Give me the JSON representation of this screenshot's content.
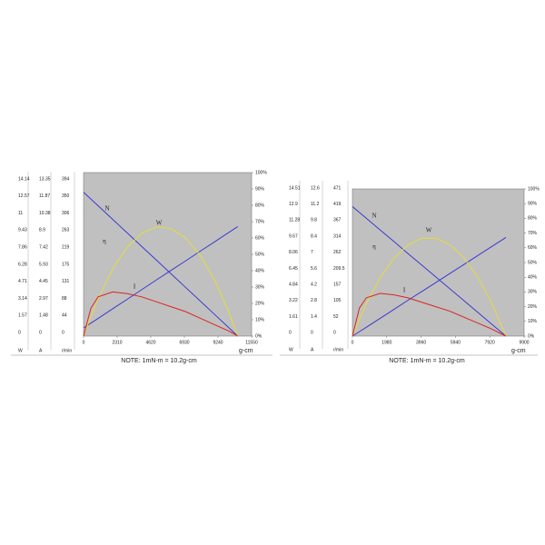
{
  "chart_data": [
    {
      "type": "line",
      "x_label": "g-cm",
      "note": "NOTE: 1mN-m = 10.2g-cm",
      "table": {
        "header": [
          "W",
          "A",
          "r/min"
        ],
        "rows": [
          [
            14.14,
            13.35,
            394
          ],
          [
            12.57,
            11.87,
            350
          ],
          [
            11.0,
            10.38,
            306
          ],
          [
            9.43,
            8.9,
            263
          ],
          [
            7.86,
            7.42,
            219
          ],
          [
            6.28,
            5.93,
            175
          ],
          [
            4.71,
            4.45,
            131
          ],
          [
            3.14,
            2.97,
            88
          ],
          [
            1.57,
            1.48,
            44
          ],
          [
            0,
            0,
            0
          ]
        ]
      },
      "x": [
        0,
        500,
        1000,
        2000,
        3000,
        4000,
        5000,
        6000,
        7000,
        8000,
        9000,
        10000,
        10600
      ],
      "xlim": [
        0,
        11550
      ],
      "xticks": [
        0,
        2310,
        4620,
        6930,
        9240,
        11550
      ],
      "y2lim": [
        0,
        100
      ],
      "y2ticks": [
        {
          "value": 0,
          "label": "0%"
        },
        {
          "value": 10,
          "label": "10%"
        },
        {
          "value": 20,
          "label": "20%"
        },
        {
          "value": 30,
          "label": "30%"
        },
        {
          "value": 40,
          "label": "40%"
        },
        {
          "value": 50,
          "label": "50%"
        },
        {
          "value": 60,
          "label": "60%"
        },
        {
          "value": 70,
          "label": "70%"
        },
        {
          "value": 80,
          "label": "80%"
        },
        {
          "value": 90,
          "label": "90%"
        },
        {
          "value": 100,
          "label": "100%"
        }
      ],
      "series": [
        {
          "name": "N",
          "color": "#3a3ad0",
          "axis": "y2",
          "values": [
            88,
            83.8,
            79.7,
            71.4,
            63.1,
            54.8,
            46.5,
            38.2,
            29.9,
            21.6,
            13.3,
            5.0,
            0
          ]
        },
        {
          "name": "I",
          "color": "#3a3ad0",
          "axis": "y2",
          "values": [
            5,
            7.9,
            10.8,
            16.7,
            22.5,
            28.4,
            34.3,
            40.1,
            45.9,
            51.8,
            57.6,
            63.5,
            67
          ]
        },
        {
          "name": "W",
          "color": "#e6dc3a",
          "axis": "y2",
          "values": [
            0,
            12.0,
            22.8,
            41.1,
            54.4,
            62.9,
            66.8,
            65.8,
            60.1,
            49.6,
            34.4,
            14.4,
            0
          ]
        },
        {
          "name": "η",
          "color": "#dd2222",
          "axis": "y2",
          "values": [
            0,
            17,
            24,
            27,
            26,
            24,
            21,
            18,
            15,
            11,
            7,
            3,
            0
          ]
        }
      ]
    },
    {
      "type": "line",
      "x_label": "g-cm",
      "note": "NOTE: 1mN-m = 10.2g-cm",
      "table": {
        "header": [
          "W",
          "A",
          "r/min"
        ],
        "rows": [
          [
            14.51,
            12.6,
            471
          ],
          [
            12.9,
            11.2,
            419
          ],
          [
            11.28,
            9.8,
            367
          ],
          [
            9.67,
            8.4,
            314
          ],
          [
            8.06,
            7.0,
            262
          ],
          [
            6.45,
            5.6,
            209.5
          ],
          [
            4.84,
            4.2,
            157
          ],
          [
            3.22,
            2.8,
            105
          ],
          [
            1.61,
            1.4,
            52
          ],
          [
            0,
            0,
            0
          ]
        ]
      },
      "x": [
        0,
        400,
        800,
        1600,
        2400,
        3200,
        4000,
        4800,
        5600,
        6400,
        7200,
        8000,
        8850
      ],
      "xlim": [
        0,
        9900
      ],
      "xticks": [
        0,
        1980,
        3960,
        5940,
        7920,
        9900
      ],
      "y2lim": [
        0,
        100
      ],
      "y2ticks": [
        {
          "value": 0,
          "label": "0%"
        },
        {
          "value": 10,
          "label": "10%"
        },
        {
          "value": 20,
          "label": "20%"
        },
        {
          "value": 30,
          "label": "30%"
        },
        {
          "value": 40,
          "label": "40%"
        },
        {
          "value": 50,
          "label": "50%"
        },
        {
          "value": 60,
          "label": "60%"
        },
        {
          "value": 70,
          "label": "70%"
        },
        {
          "value": 80,
          "label": "80%"
        },
        {
          "value": 90,
          "label": "90%"
        },
        {
          "value": 100,
          "label": "100%"
        }
      ],
      "series": [
        {
          "name": "N",
          "color": "#3a3ad0",
          "axis": "y2",
          "values": [
            88,
            84.0,
            80.1,
            72.1,
            64.2,
            56.1,
            48.2,
            40.3,
            32.3,
            24.4,
            16.4,
            8.4,
            0
          ]
        },
        {
          "name": "I",
          "color": "#3a3ad0",
          "axis": "y2",
          "values": [
            0,
            3.0,
            6.0,
            12.1,
            18.2,
            24.3,
            30.3,
            36.3,
            42.4,
            48.4,
            54.5,
            60.6,
            67
          ]
        },
        {
          "name": "W",
          "color": "#e6dc3a",
          "axis": "y2",
          "values": [
            0,
            11.5,
            21.9,
            39.7,
            52.9,
            61.9,
            66.4,
            66.5,
            62.3,
            53.6,
            40.6,
            23.3,
            0
          ]
        },
        {
          "name": "η",
          "color": "#dd2222",
          "axis": "y2",
          "values": [
            0,
            19,
            26,
            29,
            28,
            26,
            23,
            20,
            17,
            13,
            9,
            5,
            0
          ]
        }
      ]
    }
  ]
}
